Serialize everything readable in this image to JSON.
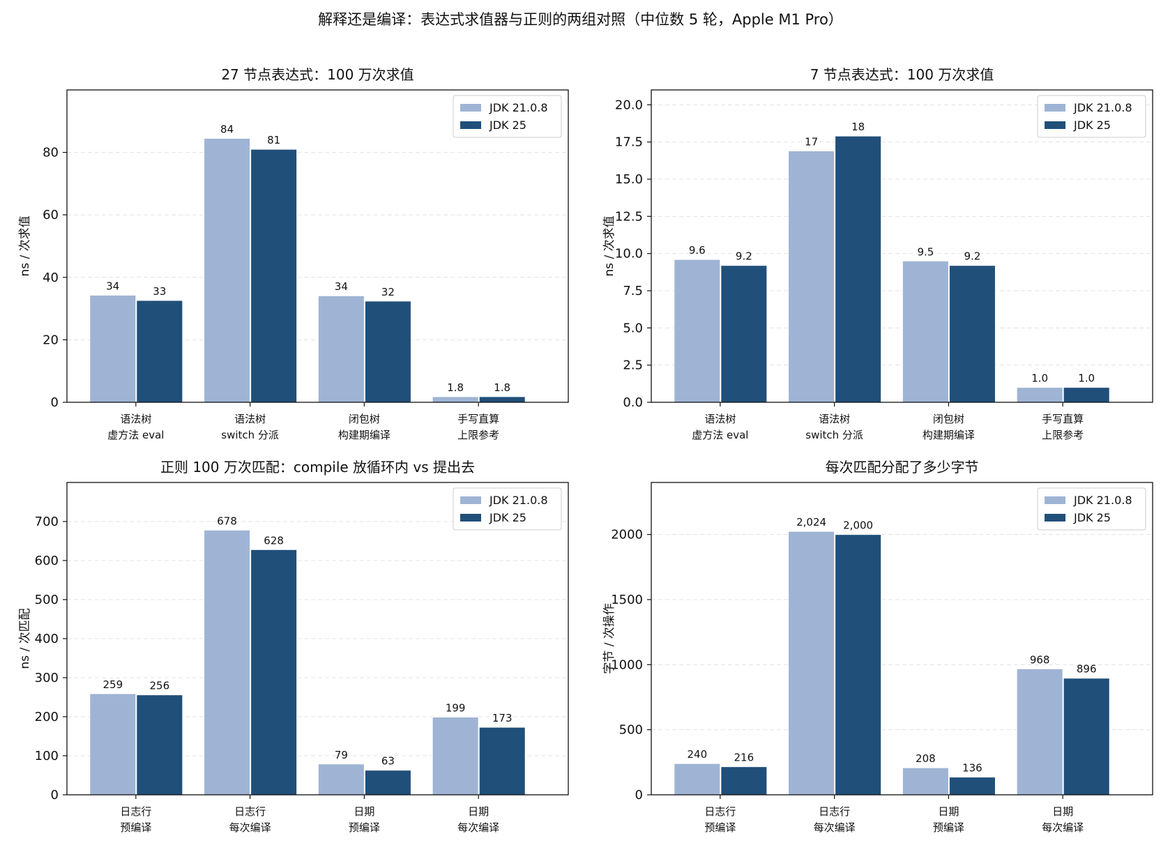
{
  "title": "解释还是编译：表达式求值器与正则的两组对照（中位数 5 轮，Apple M1 Pro）",
  "colors": {
    "jdk21": "#9fb4d4",
    "jdk25": "#204f79",
    "grid": "#e3e3e3"
  },
  "chart_data": [
    {
      "type": "bar",
      "title": "27 节点表达式：100 万次求值",
      "ylabel": "ns / 次求值",
      "ylim": [
        0,
        100
      ],
      "yticks": [
        "0",
        "20",
        "40",
        "60",
        "80"
      ],
      "categories": [
        [
          "语法树",
          "虚方法 eval"
        ],
        [
          "语法树",
          "switch 分派"
        ],
        [
          "闭包树",
          "构建期编译"
        ],
        [
          "手写直算",
          "上限参考"
        ]
      ],
      "series": [
        {
          "name": "JDK 21.0.8",
          "values": [
            34.3,
            84.5,
            34.1,
            1.8
          ],
          "labels": [
            "34",
            "84",
            "34",
            "1.8"
          ]
        },
        {
          "name": "JDK 25",
          "values": [
            32.6,
            81.0,
            32.4,
            1.8
          ],
          "labels": [
            "33",
            "81",
            "32",
            "1.8"
          ]
        }
      ],
      "legend": "top-right",
      "grid": "y"
    },
    {
      "type": "bar",
      "title": "7 节点表达式：100 万次求值",
      "ylabel": "ns / 次求值",
      "ylim": [
        0,
        21
      ],
      "yticks": [
        "0.0",
        "2.5",
        "5.0",
        "7.5",
        "10.0",
        "12.5",
        "15.0",
        "17.5",
        "20.0"
      ],
      "categories": [
        [
          "语法树",
          "虚方法 eval"
        ],
        [
          "语法树",
          "switch 分派"
        ],
        [
          "闭包树",
          "构建期编译"
        ],
        [
          "手写直算",
          "上限参考"
        ]
      ],
      "series": [
        {
          "name": "JDK 21.0.8",
          "values": [
            9.6,
            16.9,
            9.5,
            1.0
          ],
          "labels": [
            "9.6",
            "17",
            "9.5",
            "1.0"
          ]
        },
        {
          "name": "JDK 25",
          "values": [
            9.2,
            17.9,
            9.2,
            1.0
          ],
          "labels": [
            "9.2",
            "18",
            "9.2",
            "1.0"
          ]
        }
      ],
      "legend": "top-right",
      "grid": "y"
    },
    {
      "type": "bar",
      "title": "正则 100 万次匹配：compile 放循环内 vs 提出去",
      "ylabel": "ns / 次匹配",
      "ylim": [
        0,
        800
      ],
      "yticks": [
        "0",
        "100",
        "200",
        "300",
        "400",
        "500",
        "600",
        "700"
      ],
      "categories": [
        [
          "日志行",
          "预编译"
        ],
        [
          "日志行",
          "每次编译"
        ],
        [
          "日期",
          "预编译"
        ],
        [
          "日期",
          "每次编译"
        ]
      ],
      "series": [
        {
          "name": "JDK 21.0.8",
          "values": [
            259,
            678,
            79,
            199
          ],
          "labels": [
            "259",
            "678",
            "79",
            "199"
          ]
        },
        {
          "name": "JDK 25",
          "values": [
            256,
            628,
            63,
            173
          ],
          "labels": [
            "256",
            "628",
            "63",
            "173"
          ]
        }
      ],
      "legend": "top-right",
      "grid": "y"
    },
    {
      "type": "bar",
      "title": "每次匹配分配了多少字节",
      "ylabel": "字节 / 次操作",
      "ylim": [
        0,
        2400
      ],
      "yticks": [
        "0",
        "500",
        "1000",
        "1500",
        "2000"
      ],
      "categories": [
        [
          "日志行",
          "预编译"
        ],
        [
          "日志行",
          "每次编译"
        ],
        [
          "日期",
          "预编译"
        ],
        [
          "日期",
          "每次编译"
        ]
      ],
      "series": [
        {
          "name": "JDK 21.0.8",
          "values": [
            240,
            2024,
            208,
            968
          ],
          "labels": [
            "240",
            "2,024",
            "208",
            "968"
          ]
        },
        {
          "name": "JDK 25",
          "values": [
            216,
            2000,
            136,
            896
          ],
          "labels": [
            "216",
            "2,000",
            "136",
            "896"
          ]
        }
      ],
      "legend": "top-right",
      "grid": "y"
    }
  ]
}
